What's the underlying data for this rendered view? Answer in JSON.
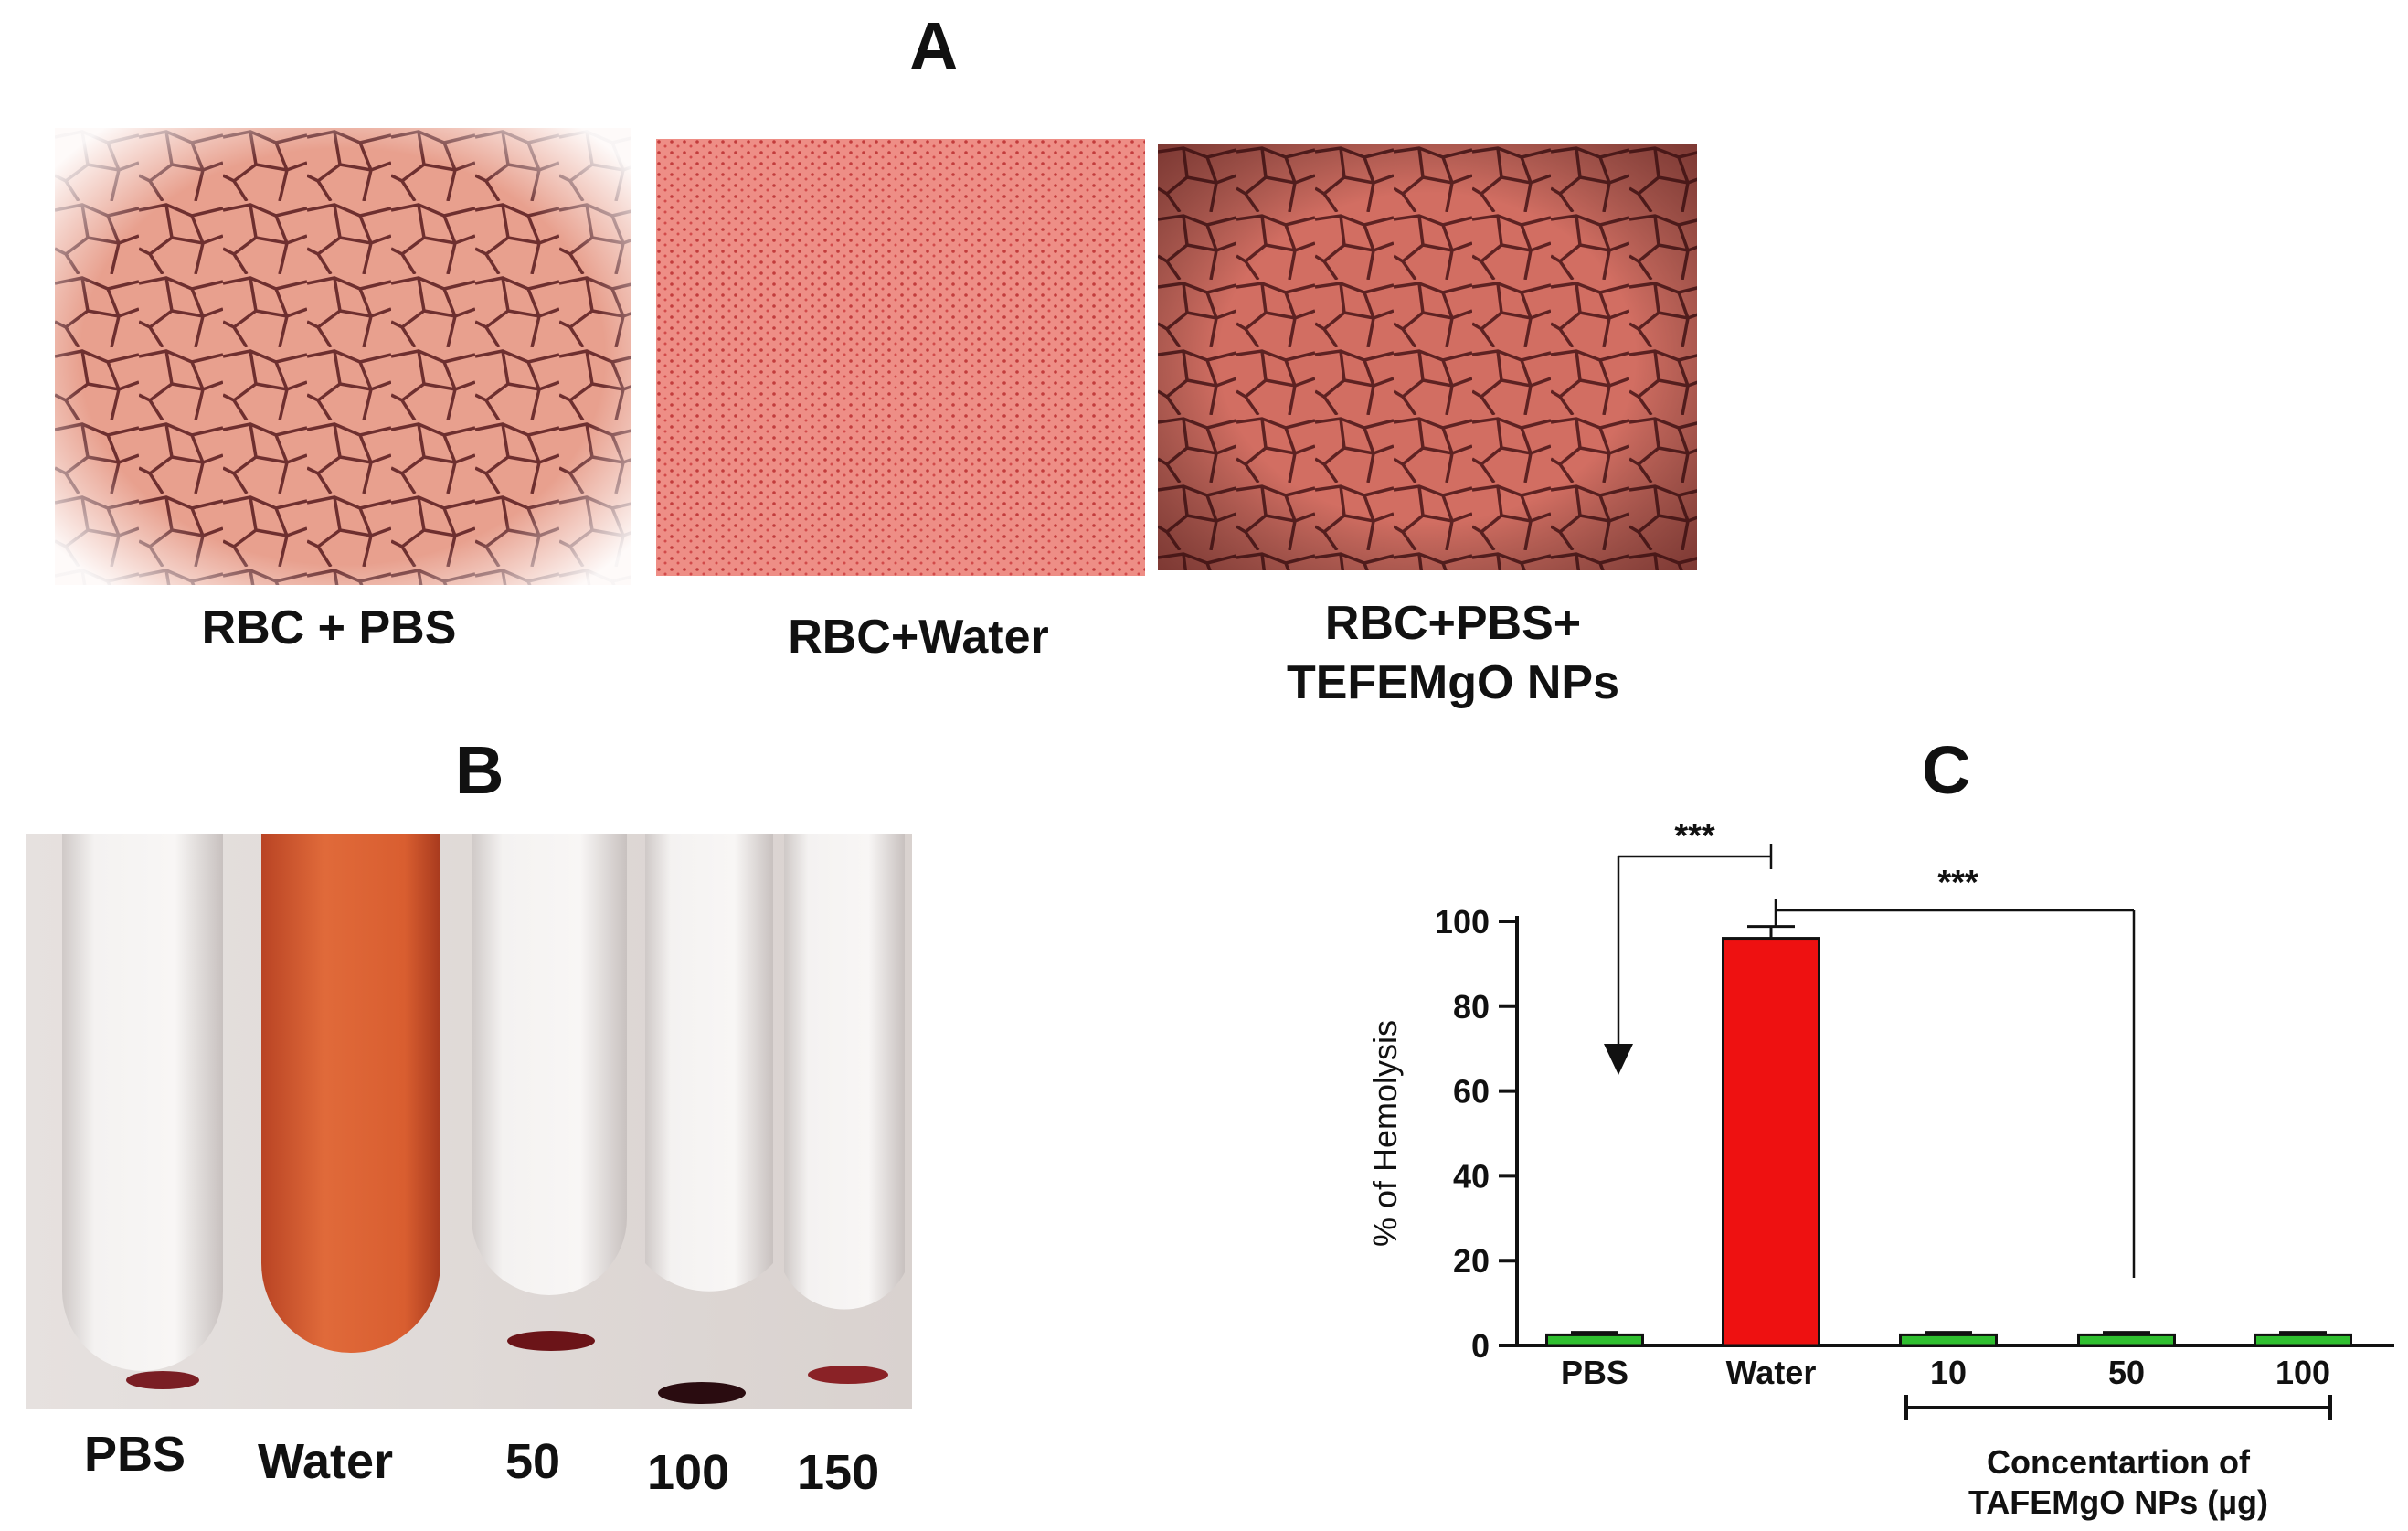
{
  "panels": {
    "a": {
      "letter": "A",
      "captions": [
        "RBC + PBS",
        "RBC+Water",
        "RBC+PBS+\nTEFEMgO NPs"
      ]
    },
    "b": {
      "letter": "B",
      "tube_labels": [
        "PBS",
        "Water",
        "50",
        "100",
        "150"
      ]
    },
    "c": {
      "letter": "C"
    }
  },
  "chart_data": {
    "type": "bar",
    "categories": [
      "PBS",
      "Water",
      "10",
      "50",
      "100"
    ],
    "values": [
      2.5,
      96,
      2.5,
      2.5,
      2.5
    ],
    "errors": [
      0.6,
      2.8,
      0.6,
      0.6,
      0.6
    ],
    "bar_colors": [
      "#2fbf2f",
      "#ee1111",
      "#2fbf2f",
      "#2fbf2f",
      "#2fbf2f"
    ],
    "ylabel": "% of Hemolysis",
    "ylim": [
      0,
      100
    ],
    "yticks": [
      0,
      20,
      40,
      60,
      80,
      100
    ],
    "group_label": "Concentartion of\nTAFEMgO NPs (µg)",
    "significance": [
      {
        "from": "Water",
        "to": "PBS",
        "label": "***"
      },
      {
        "from": "Water",
        "to": "50",
        "label": "***"
      }
    ]
  }
}
